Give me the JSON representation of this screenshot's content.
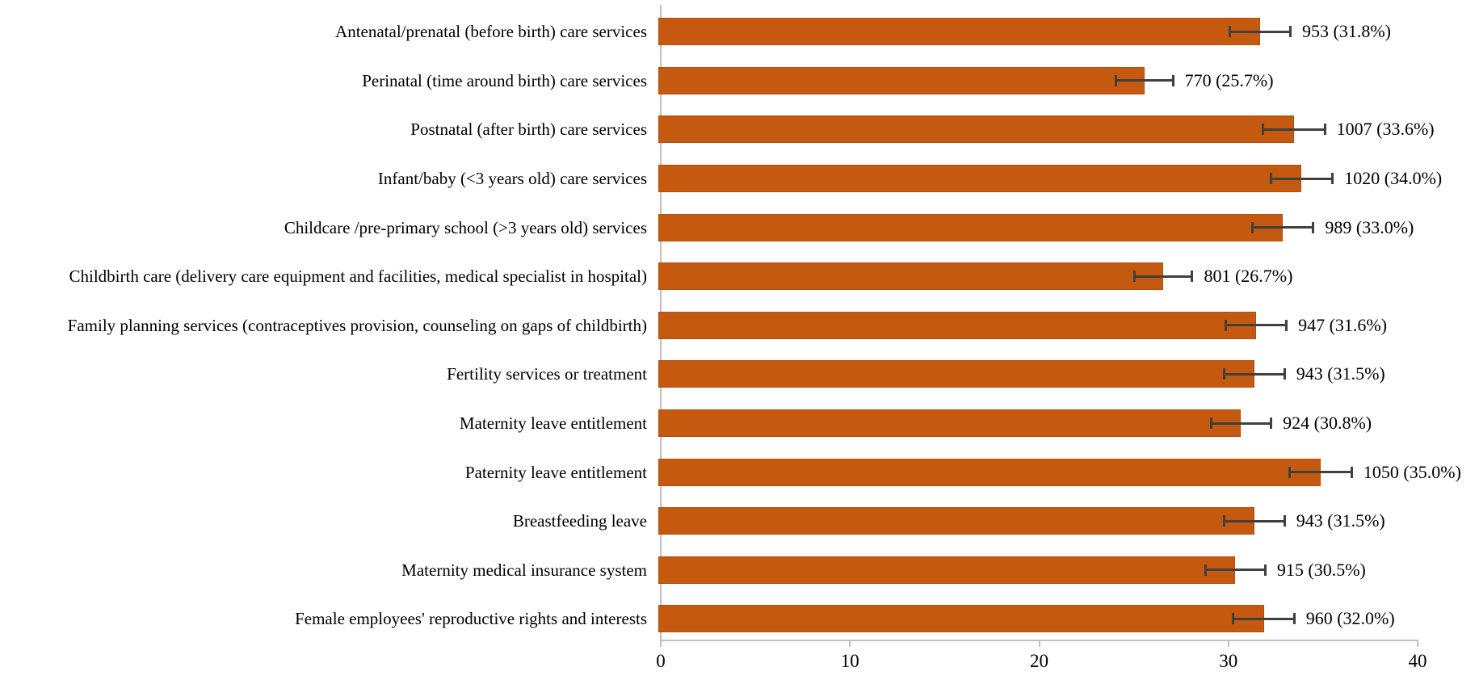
{
  "chart_data": {
    "type": "bar",
    "orientation": "horizontal",
    "title": "",
    "xlabel": "",
    "ylabel": "",
    "xlim": [
      0,
      40
    ],
    "x_ticks": [
      "0",
      "10",
      "20",
      "30",
      "40"
    ],
    "grid": false,
    "legend": "none",
    "categories": [
      "Antenatal/prenatal (before birth) care services",
      "Perinatal (time around birth) care services",
      "Postnatal (after birth) care services",
      "Infant/baby (<3 years old) care services",
      "Childcare /pre-primary school (>3 years old) services",
      "Childbirth care (delivery care equipment and facilities, medical specialist in hospital)",
      "Family planning services (contraceptives provision, counseling on gaps of childbirth)",
      "Fertility services or treatment",
      "Maternity leave entitlement",
      "Paternity leave entitlement",
      "Breastfeeding leave",
      "Maternity medical insurance system",
      "Female employees' reproductive rights and interests"
    ],
    "values_pct": [
      31.8,
      25.7,
      33.6,
      34.0,
      33.0,
      26.7,
      31.6,
      31.5,
      30.8,
      35.0,
      31.5,
      30.5,
      32.0
    ],
    "counts": [
      953,
      770,
      1007,
      1020,
      989,
      801,
      947,
      943,
      924,
      1050,
      943,
      915,
      960
    ],
    "value_labels": [
      "953 (31.8%)",
      "770 (25.7%)",
      "1007 (33.6%)",
      "1020 (34.0%)",
      "989 (33.0%)",
      "801 (26.7%)",
      "947 (31.6%)",
      "943 (31.5%)",
      "924 (30.8%)",
      "1050 (35.0%)",
      "943 (31.5%)",
      "915 (30.5%)",
      "960 (32.0%)"
    ],
    "error_bars_pct": [
      1.67,
      1.56,
      1.69,
      1.7,
      1.68,
      1.58,
      1.66,
      1.66,
      1.65,
      1.71,
      1.66,
      1.64,
      1.67
    ],
    "colors": {
      "bar_fill": "#C5590F",
      "bar_border": "#AD500E",
      "error_bar": "#404040",
      "axis_line": "#BFBFBF",
      "text": "#000000"
    }
  }
}
